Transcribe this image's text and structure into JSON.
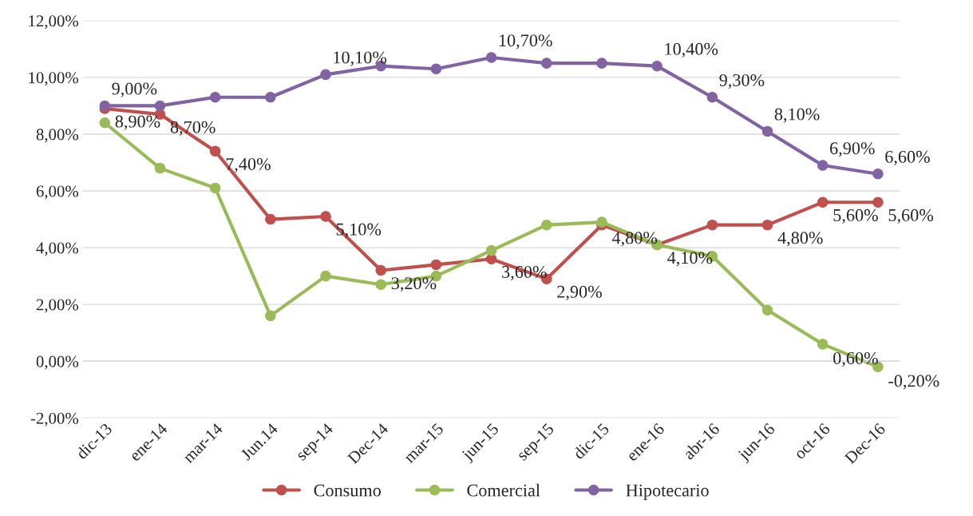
{
  "chart_data": {
    "type": "line",
    "categories": [
      "dic-13",
      "ene-14",
      "mar-14",
      "Jun.14",
      "sep-14",
      "Dec-14",
      "mar-15",
      "jun-15",
      "sep-15",
      "dic-15",
      "ene-16",
      "abr-16",
      "jun-16",
      "oct-16",
      "Dec-16"
    ],
    "series": [
      {
        "name": "Consumo",
        "color": "#c0504d",
        "values": [
          8.9,
          8.7,
          7.4,
          5.0,
          5.1,
          3.2,
          3.4,
          3.6,
          2.9,
          4.8,
          4.1,
          4.8,
          4.8,
          5.6,
          5.6
        ],
        "value_labels": [
          "8,90%",
          "8,70%",
          "7,40%",
          null,
          "5,10%",
          "3,20%",
          null,
          "3,60%",
          "2,90%",
          "4,80%",
          "4,10%",
          null,
          "4,80%",
          "5,60%",
          "5,60%"
        ]
      },
      {
        "name": "Comercial",
        "color": "#9bbb59",
        "values": [
          8.4,
          6.8,
          6.1,
          1.6,
          3.0,
          2.7,
          3.0,
          3.9,
          4.8,
          4.9,
          4.1,
          3.7,
          1.8,
          0.6,
          -0.2
        ],
        "value_labels": [
          null,
          null,
          null,
          null,
          null,
          null,
          null,
          null,
          null,
          null,
          null,
          null,
          null,
          "0,60%",
          "-0,20%"
        ]
      },
      {
        "name": "Hipotecario",
        "color": "#8064a2",
        "values": [
          9.0,
          9.0,
          9.3,
          9.3,
          10.1,
          10.4,
          10.3,
          10.7,
          10.5,
          10.5,
          10.4,
          9.3,
          8.1,
          6.9,
          6.6
        ],
        "value_labels": [
          "9,00%",
          null,
          null,
          null,
          "10,10%",
          null,
          null,
          "10,70%",
          null,
          null,
          "10,40%",
          "9,30%",
          "8,10%",
          "6,90%",
          "6,60%"
        ]
      }
    ],
    "ylim": [
      -2,
      12
    ],
    "yticks": [
      {
        "value": -2,
        "label": "-2,00%"
      },
      {
        "value": 0,
        "label": "0,00%"
      },
      {
        "value": 2,
        "label": "2,00%"
      },
      {
        "value": 4,
        "label": "4,00%"
      },
      {
        "value": 6,
        "label": "6,00%"
      },
      {
        "value": 8,
        "label": "8,00%"
      },
      {
        "value": 10,
        "label": "10,00%"
      },
      {
        "value": 12,
        "label": "12,00%"
      }
    ],
    "grid": "y",
    "legend": "bottom",
    "marker": "circle",
    "line_style": "solid"
  }
}
